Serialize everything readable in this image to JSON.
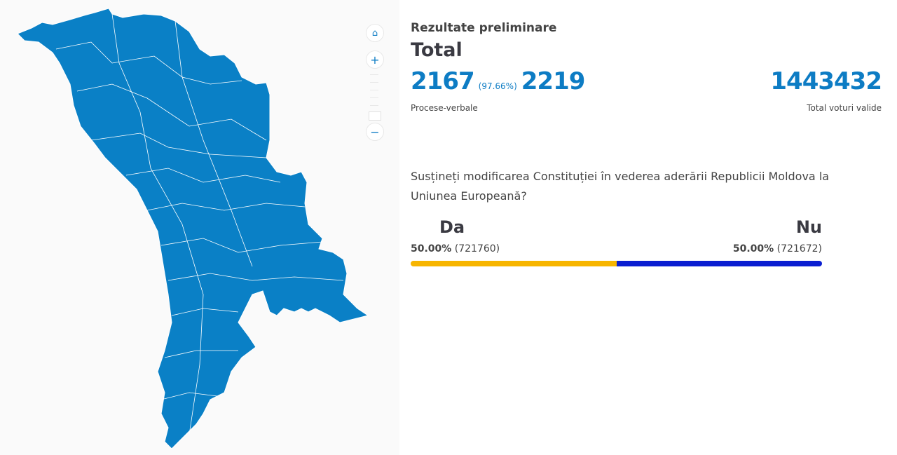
{
  "map": {
    "region_color": "#0a80c6",
    "border_color": "#ffffff"
  },
  "controls": {
    "home_icon": "home-icon",
    "zoom_in": "+",
    "zoom_out": "−"
  },
  "header": {
    "subtitle": "Rezultate preliminare",
    "title": "Total"
  },
  "protocols": {
    "counted": "2167",
    "percent": "(97.66%)",
    "total": "2219",
    "label": "Procese-verbale"
  },
  "votes": {
    "total": "1443432",
    "label": "Total voturi valide"
  },
  "question": "Susțineți modificarea Constituției în vederea aderării Republicii Moldova la Uniunea Europeană?",
  "options": [
    {
      "label": "Da",
      "percent": "50.00%",
      "count": "(721760)",
      "share": 50.0,
      "color": "#f7b500"
    },
    {
      "label": "Nu",
      "percent": "50.00%",
      "count": "(721672)",
      "share": 50.0,
      "color": "#0a1ed1"
    }
  ]
}
